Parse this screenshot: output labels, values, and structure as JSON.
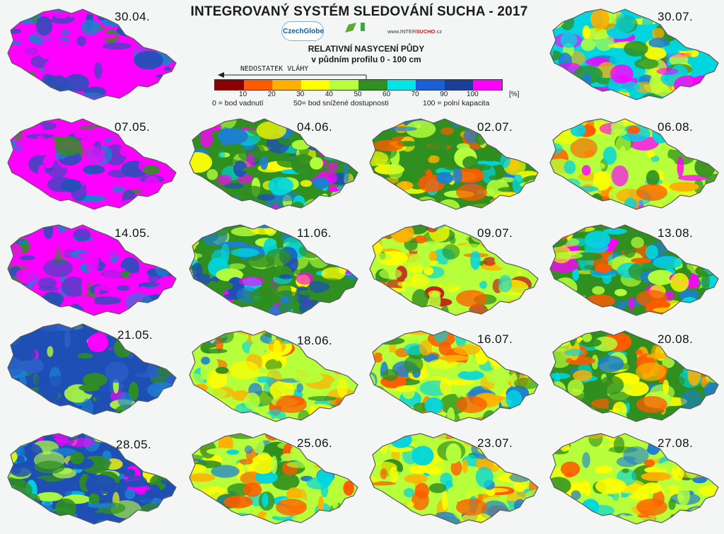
{
  "title": "INTEGROVANÝ SYSTÉM SLEDOVÁNÍ SUCHA - 2017",
  "logos": {
    "czechglobe": "CzechGlobe",
    "intersucho_prefix": "www.INTER",
    "intersucho_brand": "SUCHO",
    "intersucho_suffix": ".cz"
  },
  "subtitle": {
    "line1": "RELATIVNÍ NASYCENÍ PŮDY",
    "line2": "v půdním profilu 0 - 100 cm"
  },
  "legend": {
    "arrow_label": "NEDOSTATEK VLÁHY",
    "colors": [
      "#8b0000",
      "#ff5a00",
      "#ffb000",
      "#ffff00",
      "#b6ff3a",
      "#2f8f1f",
      "#00e5e5",
      "#1a5fd8",
      "#1a3e9a",
      "#ff00ff"
    ],
    "ticks": [
      "10",
      "20",
      "30",
      "40",
      "50",
      "60",
      "70",
      "90",
      "100"
    ],
    "unit": "[%]",
    "notes": [
      "0 = bod vadnutí",
      "50= bod snížené dostupnosti",
      "100 = polní kapacita"
    ]
  },
  "maps": [
    {
      "date": "30.04.",
      "palette": [
        "#ff00ff",
        "#ff00ff",
        "#2450b8",
        "#ff00ff",
        "#1d7fd1",
        "#ff00ff",
        "#2f8f1f"
      ]
    },
    {
      "date": "07.05.",
      "palette": [
        "#ff00ff",
        "#ff00ff",
        "#2450b8",
        "#ff00ff",
        "#1d7fd1",
        "#2f8f1f",
        "#ff00ff"
      ]
    },
    {
      "date": "14.05.",
      "palette": [
        "#ff00ff",
        "#2450b8",
        "#2450b8",
        "#ff00ff",
        "#1d7fd1",
        "#2f8f1f",
        "#ff00ff"
      ]
    },
    {
      "date": "21.05.",
      "palette": [
        "#1e4fb5",
        "#1e4fb5",
        "#2a5fc7",
        "#1d7fd1",
        "#2f8f1f",
        "#b6ff3a",
        "#ff00ff"
      ]
    },
    {
      "date": "28.05.",
      "palette": [
        "#1e4fb5",
        "#1d7fd1",
        "#2f8f1f",
        "#00d5e0",
        "#b6ff3a",
        "#ffff00",
        "#ff00ff"
      ]
    },
    {
      "date": "04.06.",
      "palette": [
        "#2f8f1f",
        "#00d5e0",
        "#1d7fd1",
        "#b6ff3a",
        "#1e4fb5",
        "#ffff00",
        "#ff00ff"
      ]
    },
    {
      "date": "11.06.",
      "palette": [
        "#2f8f1f",
        "#00d5e0",
        "#1d7fd1",
        "#b6ff3a",
        "#1e4fb5",
        "#ffff00",
        "#ff00ff"
      ]
    },
    {
      "date": "18.06.",
      "palette": [
        "#b6ff3a",
        "#2f8f1f",
        "#ffff00",
        "#00d5e0",
        "#ffb000",
        "#1d7fd1",
        "#ff5a00"
      ]
    },
    {
      "date": "25.06.",
      "palette": [
        "#b6ff3a",
        "#2f8f1f",
        "#ffff00",
        "#00d5e0",
        "#ffb000",
        "#ff5a00",
        "#1d7fd1"
      ]
    },
    {
      "date": "02.07.",
      "palette": [
        "#2f8f1f",
        "#b6ff3a",
        "#00d5e0",
        "#ffff00",
        "#ffb000",
        "#ff5a00",
        "#1d7fd1"
      ]
    },
    {
      "date": "09.07.",
      "palette": [
        "#b6ff3a",
        "#2f8f1f",
        "#ffff00",
        "#00d5e0",
        "#ffb000",
        "#ff5a00",
        "#c0281a"
      ]
    },
    {
      "date": "16.07.",
      "palette": [
        "#b6ff3a",
        "#2f8f1f",
        "#ffff00",
        "#00d5e0",
        "#ffb000",
        "#ff5a00",
        "#1d7fd1"
      ]
    },
    {
      "date": "23.07.",
      "palette": [
        "#b6ff3a",
        "#ffff00",
        "#2f8f1f",
        "#00d5e0",
        "#ffb000",
        "#ff5a00",
        "#1d7fd1"
      ]
    },
    {
      "date": "30.07.",
      "palette": [
        "#00d5e0",
        "#2f8f1f",
        "#b6ff3a",
        "#1d7fd1",
        "#ffff00",
        "#ff00ff",
        "#ffb000"
      ]
    },
    {
      "date": "06.08.",
      "palette": [
        "#b6ff3a",
        "#2f8f1f",
        "#ffff00",
        "#00d5e0",
        "#ffb000",
        "#ff5a00",
        "#ff00ff"
      ]
    },
    {
      "date": "13.08.",
      "palette": [
        "#2f8f1f",
        "#00d5e0",
        "#b6ff3a",
        "#1d7fd1",
        "#ffff00",
        "#ff00ff",
        "#ff5a00"
      ]
    },
    {
      "date": "20.08.",
      "palette": [
        "#2f8f1f",
        "#b6ff3a",
        "#00d5e0",
        "#ffff00",
        "#ffb000",
        "#1d7fd1",
        "#ff5a00"
      ]
    },
    {
      "date": "27.08.",
      "palette": [
        "#b6ff3a",
        "#2f8f1f",
        "#ffff00",
        "#00d5e0",
        "#ffb000",
        "#ff5a00",
        "#1d7fd1"
      ]
    }
  ]
}
